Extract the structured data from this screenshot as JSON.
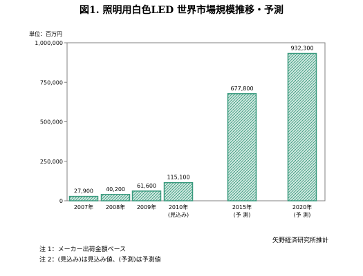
{
  "title": "図1. 照明用白色LED 世界市場規模推移・予測",
  "unit_label": "単位：百万円",
  "source": "矢野経済研究所推計",
  "notes": [
    "注 1：メーカー出荷金額ベース",
    "注 2：(見込み)は見込み値、(予測)は予測値"
  ],
  "chart_data": {
    "type": "bar",
    "categories": [
      "2007年",
      "2008年",
      "2009年",
      "2010年",
      "2015年",
      "2020年"
    ],
    "category_sublabels": [
      "",
      "",
      "",
      "(見込み)",
      "(予 測)",
      "(予 測)"
    ],
    "values": [
      27900,
      40200,
      61600,
      115100,
      677800,
      932300
    ],
    "value_labels": [
      "27,900",
      "40,200",
      "61,600",
      "115,100",
      "677,800",
      "932,300"
    ],
    "ylim": [
      0,
      1000000
    ],
    "yticks": [
      0,
      250000,
      500000,
      750000,
      1000000
    ],
    "ytick_labels": [
      "0",
      "250,000",
      "500,000",
      "750,000",
      "1,000,000"
    ],
    "bar_color": "#3a9a7e",
    "bar_pattern_color": "#cfe8df",
    "grid": false,
    "legend": "none"
  }
}
